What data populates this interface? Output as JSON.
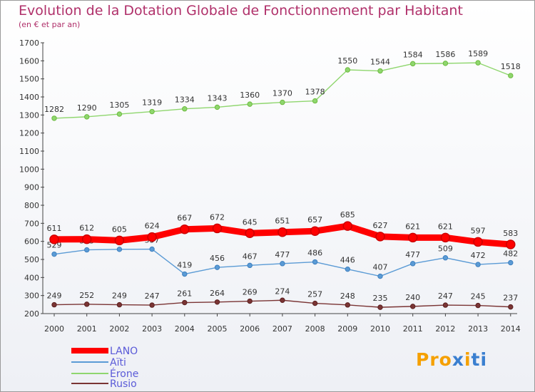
{
  "chart_data": {
    "type": "line",
    "title": "Evolution de la Dotation Globale de Fonctionnement par Habitant",
    "subtitle": "(en € et par an)",
    "x": [
      2000,
      2001,
      2002,
      2003,
      2004,
      2005,
      2006,
      2007,
      2008,
      2009,
      2010,
      2011,
      2012,
      2013,
      2014
    ],
    "ylim": [
      200,
      1700
    ],
    "yticks": [
      200,
      300,
      400,
      500,
      600,
      700,
      800,
      900,
      1000,
      1100,
      1200,
      1300,
      1400,
      1500,
      1600,
      1700
    ],
    "legend_position": "bottom-left",
    "series": [
      {
        "name": "LANO",
        "color": "#ff0000",
        "marker": "#cc0000",
        "values": [
          611,
          612,
          605,
          624,
          667,
          672,
          645,
          651,
          657,
          685,
          627,
          621,
          621,
          597,
          583
        ]
      },
      {
        "name": "Aïti",
        "color": "#5b9bd5",
        "marker": "#3d7fbf",
        "values": [
          529,
          553,
          556,
          557,
          419,
          456,
          467,
          477,
          486,
          446,
          407,
          477,
          509,
          472,
          482
        ]
      },
      {
        "name": "Érone",
        "color": "#8fd66e",
        "marker": "#6dbb3f",
        "values": [
          1282,
          1290,
          1305,
          1319,
          1334,
          1343,
          1360,
          1370,
          1378,
          1550,
          1544,
          1584,
          1586,
          1589,
          1518
        ]
      },
      {
        "name": "Rusio",
        "color": "#7a3434",
        "marker": "#5a2020",
        "values": [
          249,
          252,
          249,
          247,
          261,
          264,
          269,
          274,
          257,
          248,
          235,
          240,
          247,
          245,
          237
        ]
      }
    ]
  }
}
